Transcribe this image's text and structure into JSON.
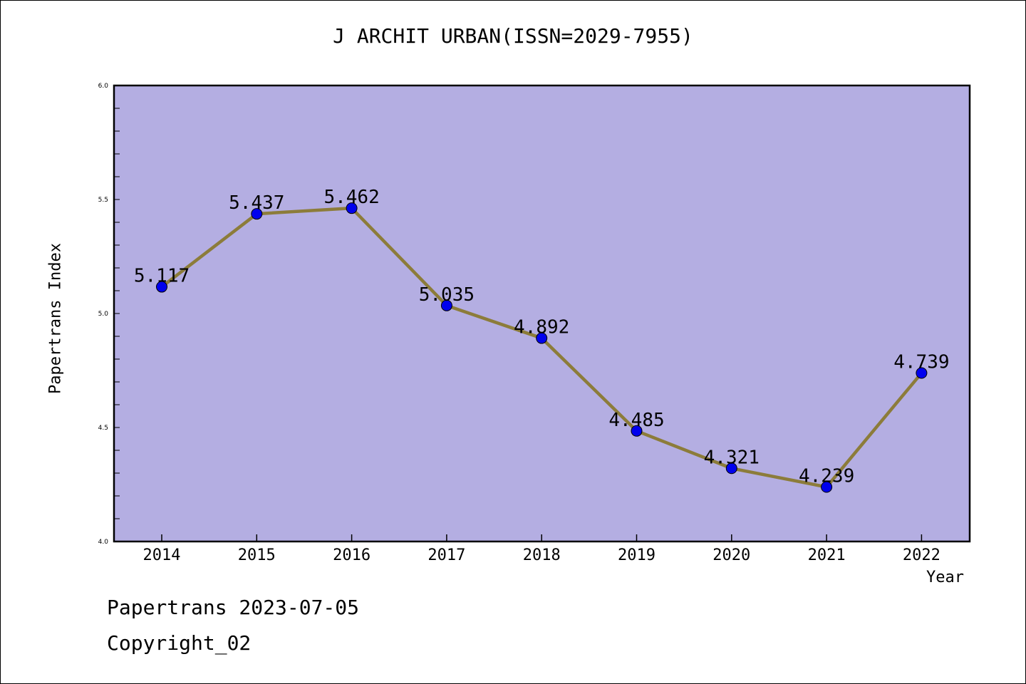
{
  "page": {
    "title": "J ARCHIT URBAN(ISSN=2029-7955)",
    "footer_date": "Papertrans 2023-07-05",
    "footer_copyright": "Copyright_02"
  },
  "chart_data": {
    "type": "line",
    "title": "J ARCHIT URBAN(ISSN=2029-7955)",
    "xlabel": "Year",
    "ylabel": "Papertrans Index",
    "categories": [
      "2014",
      "2015",
      "2016",
      "2017",
      "2018",
      "2019",
      "2020",
      "2021",
      "2022"
    ],
    "series": [
      {
        "values": [
          5.117,
          5.437,
          5.462,
          5.035,
          4.892,
          4.485,
          4.321,
          4.239,
          4.739
        ]
      }
    ],
    "data_labels": [
      "5.117",
      "5.437",
      "5.462",
      "5.035",
      "4.892",
      "4.485",
      "4.321",
      "4.239",
      "4.739"
    ],
    "ylim": [
      4.0,
      6.0
    ],
    "yticks": [
      4.0,
      4.5,
      5.0,
      5.5,
      6.0
    ],
    "ytick_labels": [
      "4.0",
      "4.5",
      "5.0",
      "5.5",
      "6.0"
    ],
    "grid": false,
    "colors": {
      "plot_background": "#b4aee2",
      "line": "#8c7c3a",
      "marker": "#0000ee",
      "axis": "#000000"
    }
  }
}
